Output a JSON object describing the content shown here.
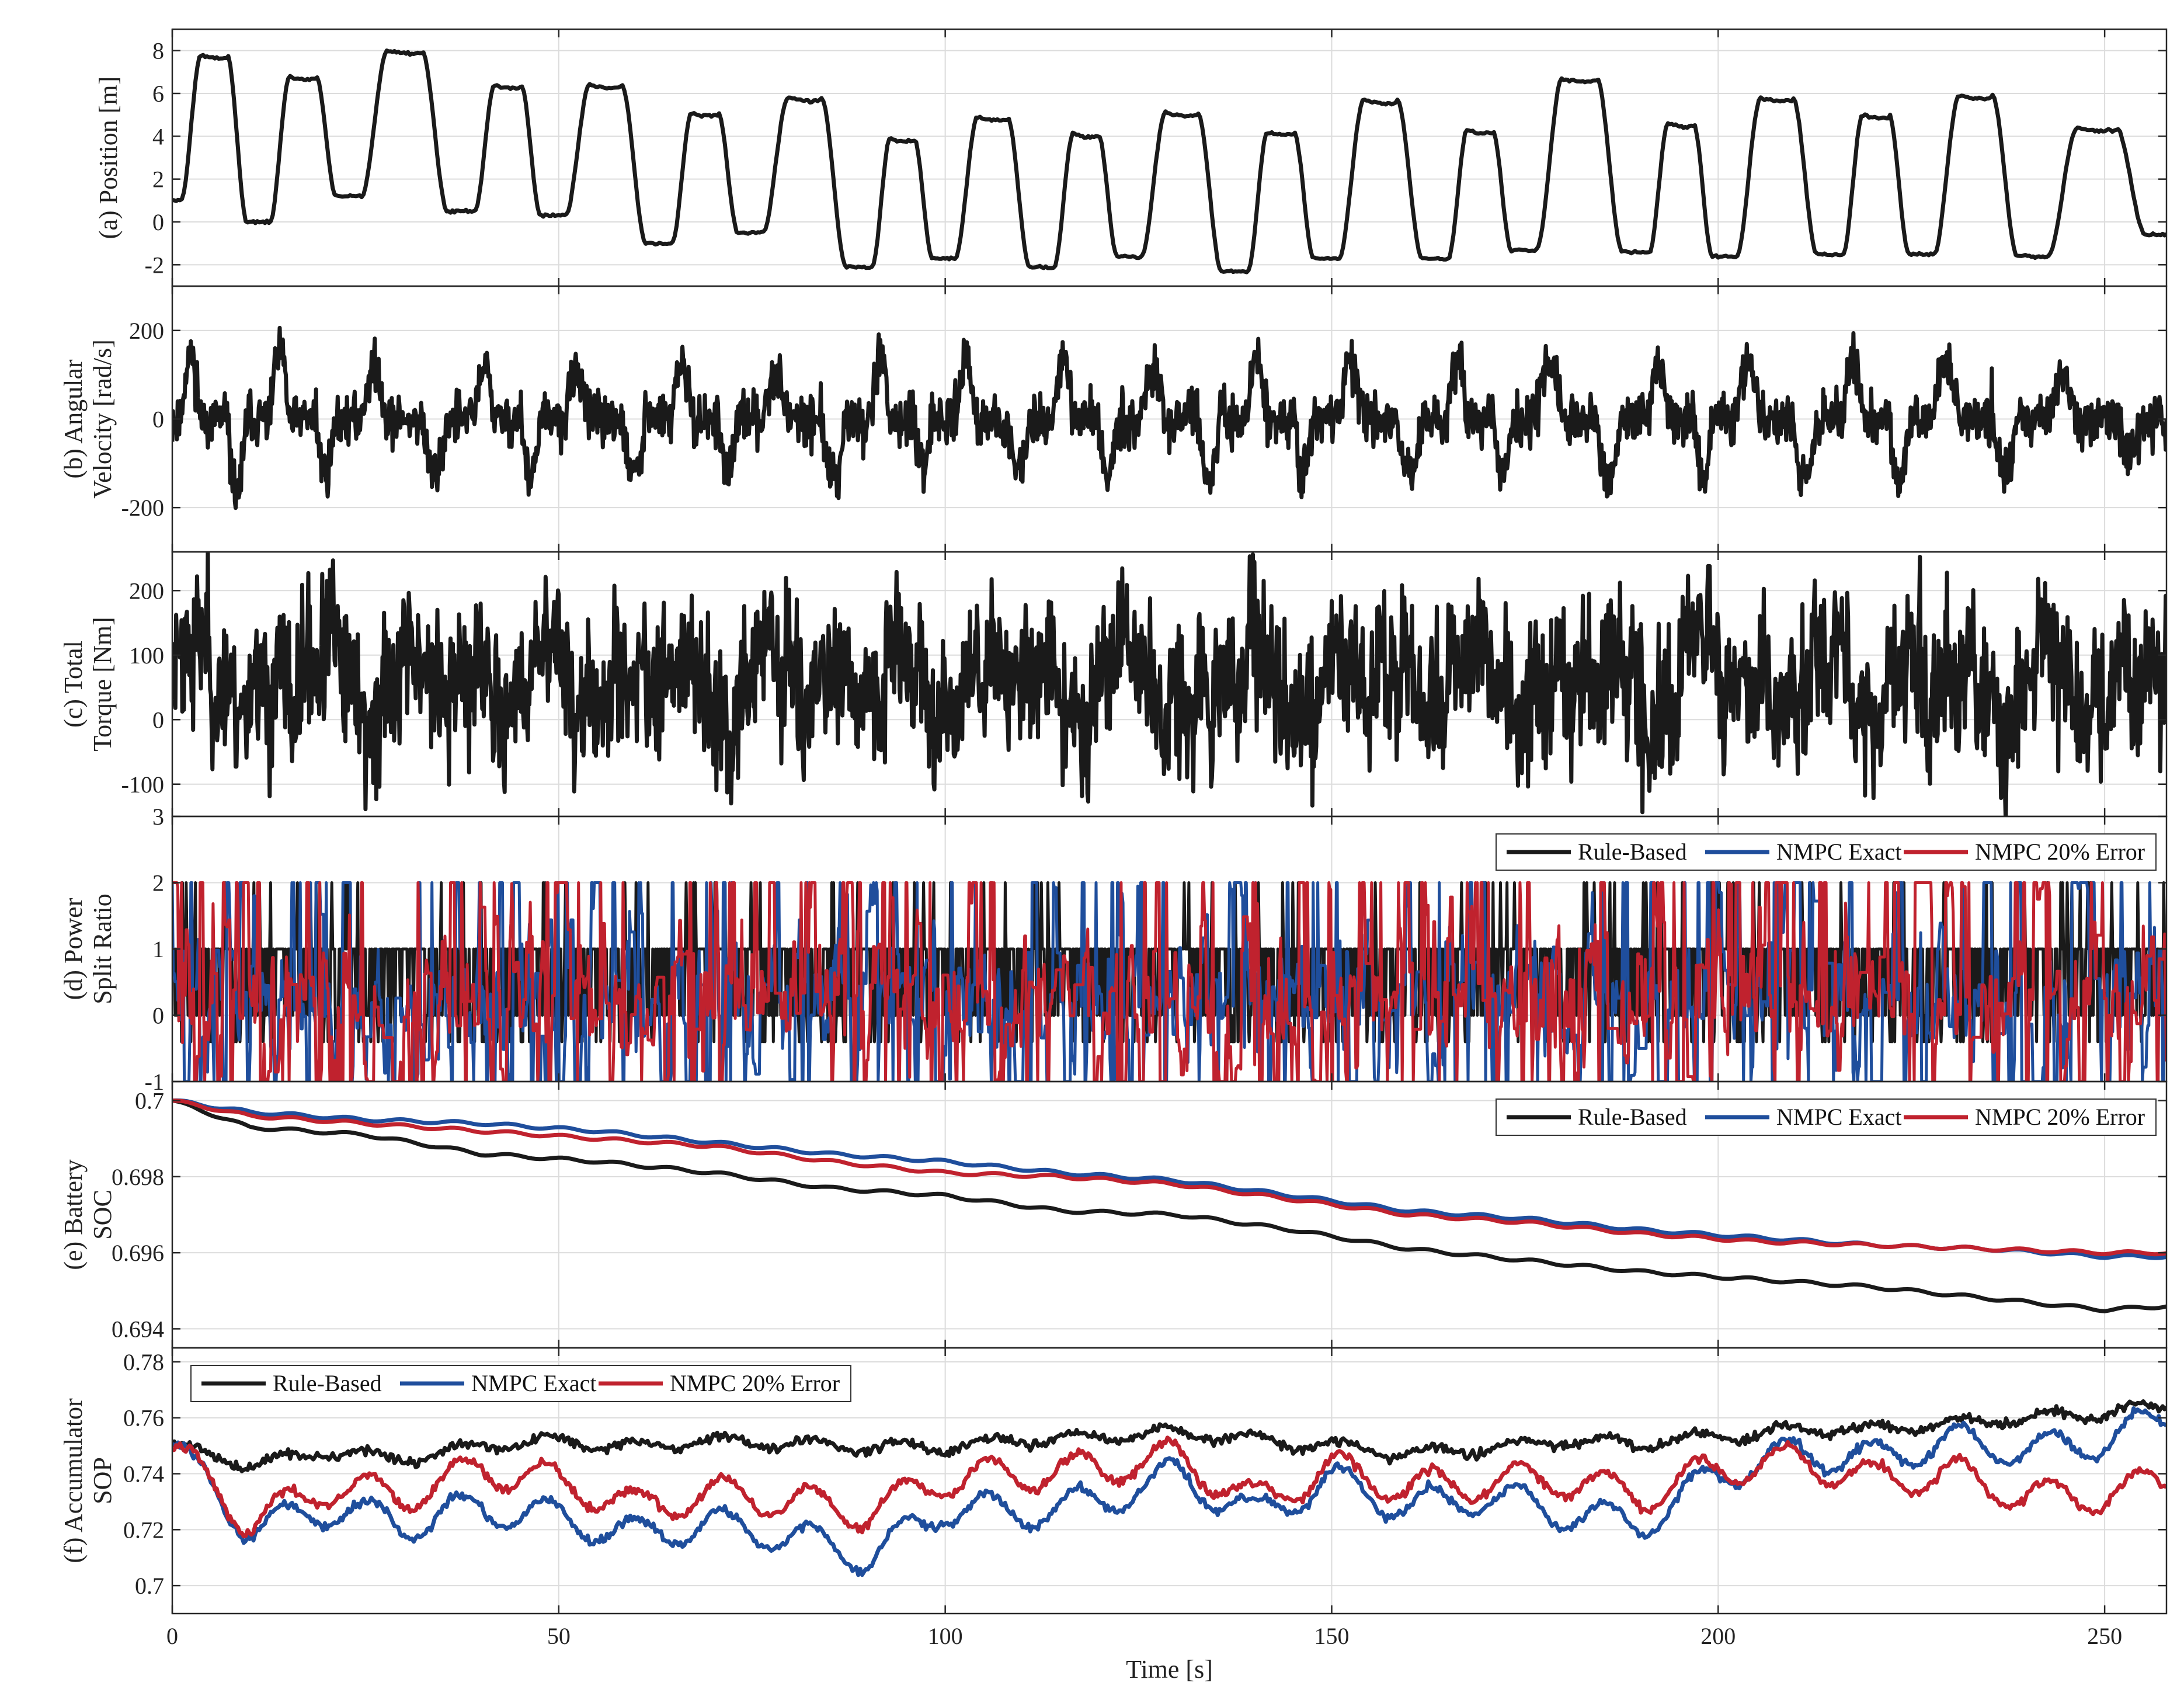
{
  "colors": {
    "rule_based": "#1a1a1a",
    "nmpc_exact": "#1f4e9c",
    "nmpc_error": "#c0222e",
    "grid": "#dcdcdc",
    "axis": "#262626"
  },
  "x_axis": {
    "label": "Time [s]",
    "range": [
      0,
      258
    ],
    "ticks": [
      0,
      50,
      100,
      150,
      200,
      250
    ]
  },
  "chart_data": [
    {
      "id": "position",
      "type": "line",
      "ylabel": [
        "(a) Position [m]"
      ],
      "ylim": [
        -3,
        9
      ],
      "yticks": [
        -2,
        0,
        2,
        4,
        6,
        8
      ],
      "grid": true,
      "legend": null,
      "signal": {
        "kind": "cycles",
        "cycles": [
          {
            "start": 0.0,
            "low": 1.0,
            "high": 7.8,
            "end_low": 0.0
          },
          {
            "start": 11.5,
            "low": 0.0,
            "high": 6.8,
            "end_low": 1.2
          },
          {
            "start": 23.0,
            "low": 1.2,
            "high": 8.0,
            "end_low": 0.5
          },
          {
            "start": 38.0,
            "low": 0.5,
            "high": 6.4,
            "end_low": 0.3
          },
          {
            "start": 49.5,
            "low": 0.3,
            "high": 6.4,
            "end_low": -1.0
          },
          {
            "start": 63.5,
            "low": -1.0,
            "high": 5.1,
            "end_low": -0.5
          },
          {
            "start": 75.0,
            "low": -0.5,
            "high": 5.8,
            "end_low": -2.1
          },
          {
            "start": 89.5,
            "low": -2.1,
            "high": 3.9,
            "end_low": -1.7
          },
          {
            "start": 100.0,
            "low": -1.7,
            "high": 4.9,
            "end_low": -2.1
          },
          {
            "start": 113.0,
            "low": -2.1,
            "high": 4.1,
            "end_low": -1.6
          },
          {
            "start": 124.0,
            "low": -1.6,
            "high": 5.1,
            "end_low": -2.3
          },
          {
            "start": 138.0,
            "low": -2.3,
            "high": 4.2,
            "end_low": -1.7
          },
          {
            "start": 149.5,
            "low": -1.7,
            "high": 5.7,
            "end_low": -1.7
          },
          {
            "start": 164.0,
            "low": -1.7,
            "high": 4.3,
            "end_low": -1.3
          },
          {
            "start": 175.0,
            "low": -1.3,
            "high": 6.7,
            "end_low": -1.4
          },
          {
            "start": 190.0,
            "low": -1.4,
            "high": 4.6,
            "end_low": -1.6
          },
          {
            "start": 201.0,
            "low": -1.6,
            "high": 5.8,
            "end_low": -1.5
          },
          {
            "start": 215.0,
            "low": -1.5,
            "high": 5.0,
            "end_low": -1.5
          },
          {
            "start": 226.5,
            "low": -1.5,
            "high": 5.9,
            "end_low": -1.6
          },
          {
            "start": 241.0,
            "low": -1.6,
            "high": 4.4,
            "end_low": -0.6
          }
        ],
        "end_value": -0.6
      },
      "series": [
        {
          "key": "rule_based",
          "color": "#1a1a1a"
        }
      ]
    },
    {
      "id": "angular_velocity",
      "type": "line",
      "ylabel": [
        "(b) Angular",
        "Velocity [rad/s]"
      ],
      "ylim": [
        -300,
        300
      ],
      "yticks": [
        -200,
        0,
        200
      ],
      "grid": true,
      "legend": null,
      "signal": {
        "kind": "velocity",
        "peak": 240,
        "noise": 28,
        "seed": 11
      },
      "series": [
        {
          "key": "rule_based",
          "color": "#1a1a1a"
        }
      ]
    },
    {
      "id": "total_torque",
      "type": "line",
      "ylabel": [
        "(c) Total",
        "Torque [Nm]"
      ],
      "ylim": [
        -150,
        260
      ],
      "yticks": [
        -100,
        0,
        100,
        200
      ],
      "grid": true,
      "legend": null,
      "signal": {
        "kind": "torque",
        "mean": 60,
        "amp": 70,
        "noise": 55,
        "seed": 23
      },
      "series": [
        {
          "key": "rule_based",
          "color": "#1a1a1a"
        }
      ]
    },
    {
      "id": "power_split",
      "type": "line",
      "ylabel": [
        "(d) Power",
        "Split Ratio"
      ],
      "ylim": [
        -1,
        3
      ],
      "yticks": [
        -1,
        0,
        1,
        2,
        3
      ],
      "grid": true,
      "legend": "top-right",
      "signal": {
        "kind": "split"
      },
      "series": [
        {
          "key": "rule_based",
          "name": "Rule-Based",
          "color": "#1a1a1a",
          "seed": 31
        },
        {
          "key": "nmpc_exact",
          "name": "NMPC Exact",
          "color": "#1f4e9c",
          "seed": 47
        },
        {
          "key": "nmpc_error",
          "name": "NMPC 20% Error",
          "color": "#c0222e",
          "seed": 59
        }
      ]
    },
    {
      "id": "battery_soc",
      "type": "line",
      "ylabel": [
        "(e) Battery",
        "SOC"
      ],
      "ylim": [
        0.6935,
        0.7005
      ],
      "yticks": [
        0.694,
        0.696,
        0.698,
        0.7
      ],
      "ytick_labels": [
        "0.694",
        "0.696",
        "0.698",
        "0.7"
      ],
      "grid": true,
      "legend": "top-right",
      "signal": {
        "kind": "soc"
      },
      "series": [
        {
          "key": "rule_based",
          "name": "Rule-Based",
          "color": "#1a1a1a",
          "points": [
            [
              0,
              0.7
            ],
            [
              10,
              0.6993
            ],
            [
              25,
              0.6991
            ],
            [
              40,
              0.6986
            ],
            [
              55,
              0.6984
            ],
            [
              70,
              0.6981
            ],
            [
              85,
              0.6977
            ],
            [
              100,
              0.6975
            ],
            [
              115,
              0.6971
            ],
            [
              130,
              0.697
            ],
            [
              145,
              0.6966
            ],
            [
              160,
              0.6961
            ],
            [
              175,
              0.6958
            ],
            [
              190,
              0.6955
            ],
            [
              205,
              0.6953
            ],
            [
              220,
              0.6951
            ],
            [
              235,
              0.6948
            ],
            [
              250,
              0.6945
            ],
            [
              258,
              0.6946
            ]
          ]
        },
        {
          "key": "nmpc_exact",
          "name": "NMPC Exact",
          "color": "#1f4e9c",
          "points": [
            [
              0,
              0.7
            ],
            [
              10,
              0.6997
            ],
            [
              25,
              0.6995
            ],
            [
              40,
              0.6994
            ],
            [
              55,
              0.6992
            ],
            [
              70,
              0.6989
            ],
            [
              85,
              0.6986
            ],
            [
              100,
              0.6984
            ],
            [
              115,
              0.6981
            ],
            [
              130,
              0.6979
            ],
            [
              145,
              0.6975
            ],
            [
              160,
              0.6971
            ],
            [
              175,
              0.6969
            ],
            [
              190,
              0.6966
            ],
            [
              205,
              0.6964
            ],
            [
              220,
              0.6962
            ],
            [
              235,
              0.6961
            ],
            [
              250,
              0.6959
            ],
            [
              258,
              0.6959
            ]
          ]
        },
        {
          "key": "nmpc_error",
          "name": "NMPC 20% Error",
          "color": "#c0222e",
          "points": [
            [
              0,
              0.7
            ],
            [
              10,
              0.6996
            ],
            [
              25,
              0.6994
            ],
            [
              40,
              0.6992
            ],
            [
              55,
              0.699
            ],
            [
              70,
              0.6988
            ],
            [
              85,
              0.6984
            ],
            [
              100,
              0.6981
            ],
            [
              115,
              0.698
            ],
            [
              130,
              0.6978
            ],
            [
              145,
              0.6974
            ],
            [
              160,
              0.697
            ],
            [
              175,
              0.6968
            ],
            [
              190,
              0.6965
            ],
            [
              205,
              0.6963
            ],
            [
              220,
              0.6962
            ],
            [
              235,
              0.6961
            ],
            [
              250,
              0.696
            ],
            [
              258,
              0.696
            ]
          ]
        }
      ]
    },
    {
      "id": "accumulator_sop",
      "type": "line",
      "ylabel": [
        "(f) Accumulator",
        "SOP"
      ],
      "ylim": [
        0.69,
        0.785
      ],
      "yticks": [
        0.7,
        0.72,
        0.74,
        0.76,
        0.78
      ],
      "ytick_labels": [
        "0.7",
        "0.72",
        "0.74",
        "0.76",
        "0.78"
      ],
      "grid": true,
      "legend": "top-left",
      "signal": {
        "kind": "sop"
      },
      "series": [
        {
          "key": "rule_based",
          "name": "Rule-Based",
          "color": "#1a1a1a",
          "seed": 71,
          "points": [
            [
              0,
              0.75
            ],
            [
              10,
              0.743
            ],
            [
              20,
              0.748
            ],
            [
              30,
              0.745
            ],
            [
              40,
              0.75
            ],
            [
              50,
              0.752
            ],
            [
              60,
              0.749
            ],
            [
              70,
              0.752
            ],
            [
              80,
              0.751
            ],
            [
              90,
              0.75
            ],
            [
              100,
              0.749
            ],
            [
              110,
              0.752
            ],
            [
              120,
              0.753
            ],
            [
              130,
              0.755
            ],
            [
              140,
              0.752
            ],
            [
              150,
              0.75
            ],
            [
              160,
              0.747
            ],
            [
              170,
              0.749
            ],
            [
              180,
              0.752
            ],
            [
              190,
              0.751
            ],
            [
              200,
              0.753
            ],
            [
              210,
              0.756
            ],
            [
              220,
              0.756
            ],
            [
              230,
              0.758
            ],
            [
              240,
              0.76
            ],
            [
              250,
              0.762
            ],
            [
              258,
              0.764
            ]
          ]
        },
        {
          "key": "nmpc_exact",
          "name": "NMPC Exact",
          "color": "#1f4e9c",
          "seed": 83,
          "points": [
            [
              0,
              0.75
            ],
            [
              10,
              0.72
            ],
            [
              20,
              0.728
            ],
            [
              30,
              0.722
            ],
            [
              40,
              0.728
            ],
            [
              50,
              0.724
            ],
            [
              60,
              0.718
            ],
            [
              70,
              0.722
            ],
            [
              80,
              0.718
            ],
            [
              90,
              0.71
            ],
            [
              100,
              0.728
            ],
            [
              110,
              0.726
            ],
            [
              120,
              0.73
            ],
            [
              130,
              0.74
            ],
            [
              140,
              0.725
            ],
            [
              150,
              0.738
            ],
            [
              160,
              0.728
            ],
            [
              170,
              0.732
            ],
            [
              180,
              0.726
            ],
            [
              190,
              0.722
            ],
            [
              200,
              0.74
            ],
            [
              210,
              0.748
            ],
            [
              220,
              0.745
            ],
            [
              230,
              0.752
            ],
            [
              240,
              0.748
            ],
            [
              250,
              0.752
            ],
            [
              258,
              0.76
            ]
          ]
        },
        {
          "key": "nmpc_error",
          "name": "NMPC 20% Error",
          "color": "#c0222e",
          "seed": 97,
          "points": [
            [
              0,
              0.75
            ],
            [
              10,
              0.722
            ],
            [
              20,
              0.735
            ],
            [
              30,
              0.732
            ],
            [
              40,
              0.742
            ],
            [
              50,
              0.737
            ],
            [
              60,
              0.728
            ],
            [
              70,
              0.733
            ],
            [
              80,
              0.73
            ],
            [
              90,
              0.726
            ],
            [
              100,
              0.738
            ],
            [
              110,
              0.74
            ],
            [
              120,
              0.742
            ],
            [
              130,
              0.746
            ],
            [
              140,
              0.73
            ],
            [
              150,
              0.742
            ],
            [
              160,
              0.735
            ],
            [
              170,
              0.737
            ],
            [
              180,
              0.738
            ],
            [
              190,
              0.732
            ],
            [
              200,
              0.742
            ],
            [
              210,
              0.745
            ],
            [
              220,
              0.738
            ],
            [
              230,
              0.74
            ],
            [
              240,
              0.732
            ],
            [
              250,
              0.732
            ],
            [
              258,
              0.738
            ]
          ]
        }
      ]
    }
  ]
}
